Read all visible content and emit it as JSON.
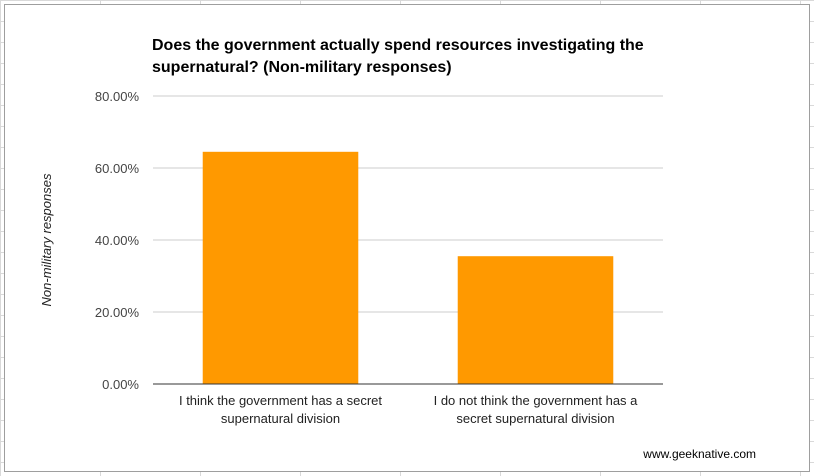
{
  "chart_data": {
    "type": "bar",
    "title_lines": [
      "Does the government actually spend resources investigating the",
      "supernatural? (Non-military responses)"
    ],
    "ylabel": "Non-military responses",
    "xlabel": "",
    "categories": [
      [
        "I think the government has a secret",
        "supernatural division"
      ],
      [
        "I do not think the government has a",
        "secret supernatural division"
      ]
    ],
    "values": [
      64.5,
      35.5
    ],
    "ylim": [
      0,
      80
    ],
    "yticks": [
      0,
      20,
      40,
      60,
      80
    ],
    "ytick_labels": [
      "0.00%",
      "20.00%",
      "40.00%",
      "60.00%",
      "80.00%"
    ],
    "grid": true,
    "legend": "none",
    "bar_color": "#ff9900"
  },
  "source_text": "www.geeknative.com"
}
